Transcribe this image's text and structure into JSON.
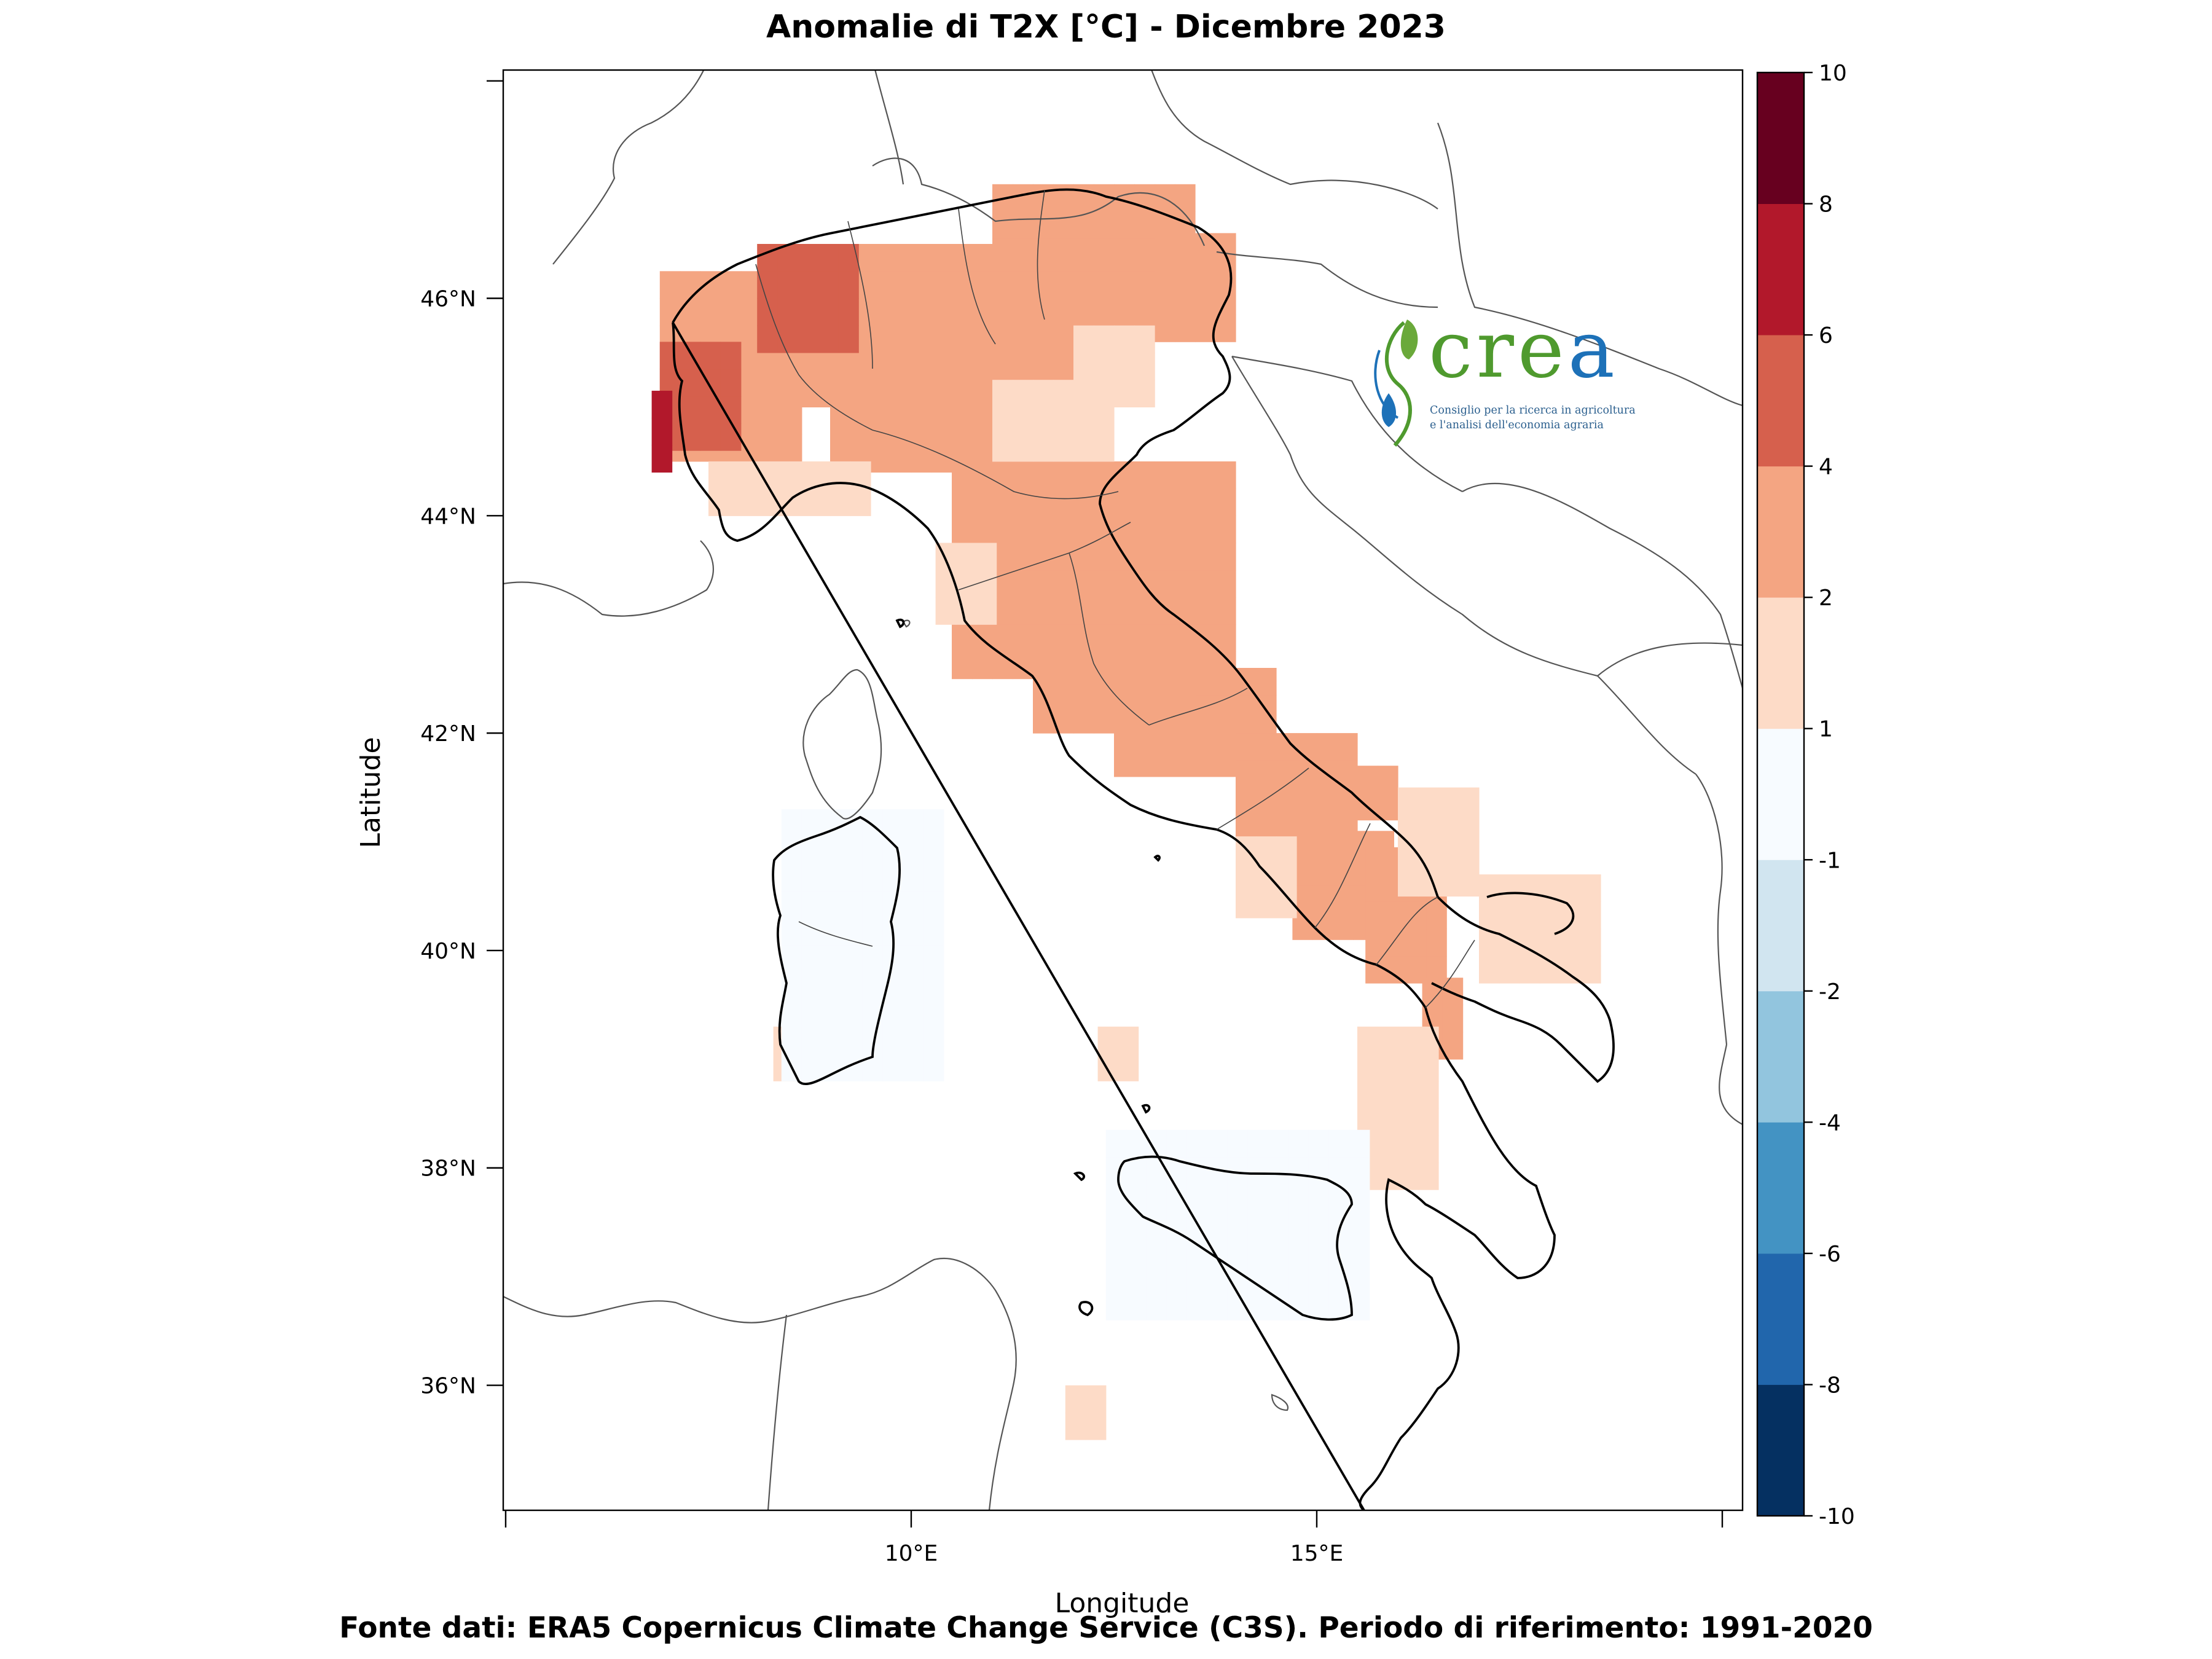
{
  "title": "Anomalie di T2X  [°C] - Dicembre 2023",
  "footer": "Fonte dati: ERA5 Copernicus Climate Change Service (C3S). Periodo di riferimento: 1991-2020",
  "axes": {
    "xlabel": "Longitude",
    "ylabel": "Latitude",
    "x_ticks": [
      {
        "value": 10,
        "label": "10°E"
      },
      {
        "value": 15,
        "label": "15°E"
      }
    ],
    "y_ticks": [
      {
        "value": 36,
        "label": "36°N"
      },
      {
        "value": 38,
        "label": "38°N"
      },
      {
        "value": 40,
        "label": "40°N"
      },
      {
        "value": 42,
        "label": "42°N"
      },
      {
        "value": 44,
        "label": "44°N"
      },
      {
        "value": 46,
        "label": "46°N"
      }
    ],
    "lon_range": [
      4.97,
      20.25
    ],
    "lat_range": [
      34.85,
      48.1
    ]
  },
  "colorbar": {
    "levels": [
      -10,
      -8,
      -6,
      -4,
      -2,
      -1,
      1,
      2,
      4,
      6,
      8,
      10
    ],
    "colors": [
      "#053061",
      "#2166ac",
      "#4393c3",
      "#92c5de",
      "#d1e5f0",
      "#f7fbff",
      "#fddbc7",
      "#f4a582",
      "#d6604d",
      "#b2182b",
      "#67001f"
    ]
  },
  "chart_data": {
    "type": "heatmap",
    "variable": "T2X",
    "grid_step_deg": 0.25,
    "regions": [
      {
        "lon": [
          8.5,
          13.0
        ],
        "lat": [
          45.0,
          46.5
        ],
        "value": 3.0
      },
      {
        "lon": [
          6.9,
          8.5
        ],
        "lat": [
          44.5,
          46.1
        ],
        "value": 3.0
      },
      {
        "lon": [
          9.0,
          11.0
        ],
        "lat": [
          44.4,
          45.1
        ],
        "value": 3.0
      },
      {
        "lon": [
          10.5,
          14.0
        ],
        "lat": [
          42.5,
          44.3
        ],
        "value": 3.0
      },
      {
        "lon": [
          12.5,
          14.3
        ],
        "lat": [
          41.6,
          42.6
        ],
        "value": 3.0
      },
      {
        "lon": [
          11.5,
          13.5
        ],
        "lat": [
          42.0,
          42.6
        ],
        "value": 3.0
      },
      {
        "lon": [
          14.0,
          15.5
        ],
        "lat": [
          41.0,
          42.0
        ],
        "value": 3.0
      },
      {
        "lon": [
          14.7,
          15.9
        ],
        "lat": [
          40.1,
          41.0
        ],
        "value": 3.0
      },
      {
        "lon": [
          15.6,
          16.5
        ],
        "lat": [
          39.7,
          40.8
        ],
        "value": 3.0
      },
      {
        "lon": [
          16.3,
          16.8
        ],
        "lat": [
          39.0,
          39.6
        ],
        "value": 3.0
      },
      {
        "lon": [
          11.0,
          13.5
        ],
        "lat": [
          46.3,
          47.0
        ],
        "value": 3.0
      },
      {
        "lon": [
          13.0,
          14.0
        ],
        "lat": [
          45.6,
          46.5
        ],
        "value": 3.0
      },
      {
        "lon": [
          15.0,
          16.0
        ],
        "lat": [
          41.2,
          41.6
        ],
        "value": 3.0
      },
      {
        "lon": [
          12.0,
          13.0
        ],
        "lat": [
          45.0,
          45.7
        ],
        "value": 1.5
      },
      {
        "lon": [
          11.0,
          12.5
        ],
        "lat": [
          44.5,
          45.1
        ],
        "value": 1.5
      },
      {
        "lon": [
          16.0,
          17.0
        ],
        "lat": [
          40.5,
          41.3
        ],
        "value": 1.5
      },
      {
        "lon": [
          17.0,
          18.5
        ],
        "lat": [
          39.7,
          40.7
        ],
        "value": 1.5
      },
      {
        "lon": [
          15.5,
          16.5
        ],
        "lat": [
          37.8,
          39.2
        ],
        "value": 1.5
      },
      {
        "lon": [
          13.4,
          15.0
        ],
        "lat": [
          36.7,
          37.9
        ],
        "value": 1.5
      },
      {
        "lon": [
          10.3,
          11.0
        ],
        "lat": [
          43.0,
          43.6
        ],
        "value": 1.5
      },
      {
        "lon": [
          7.5,
          9.5
        ],
        "lat": [
          44.0,
          44.5
        ],
        "value": 1.5
      },
      {
        "lon": [
          14.0,
          14.7
        ],
        "lat": [
          40.3,
          41.0
        ],
        "value": 1.5
      },
      {
        "lon": [
          9.2,
          9.8
        ],
        "lat": [
          39.2,
          41.0
        ],
        "value": 1.5
      },
      {
        "lon": [
          8.3,
          8.6
        ],
        "lat": [
          38.8,
          39.1
        ],
        "value": 1.5
      },
      {
        "lon": [
          11.9,
          12.4
        ],
        "lat": [
          35.5,
          35.8
        ],
        "value": 1.5
      },
      {
        "lon": [
          12.3,
          12.7
        ],
        "lat": [
          38.8,
          39.1
        ],
        "value": 1.5
      },
      {
        "lon": [
          8.1,
          9.3
        ],
        "lat": [
          45.5,
          46.3
        ],
        "value": 5.0
      },
      {
        "lon": [
          6.9,
          7.7
        ],
        "lat": [
          44.6,
          45.5
        ],
        "value": 5.0
      },
      {
        "lon": [
          6.8,
          7.0
        ],
        "lat": [
          44.4,
          45.0
        ],
        "value": 7.0
      },
      {
        "lon": [
          8.4,
          10.4
        ],
        "lat": [
          38.8,
          41.3
        ],
        "value": 0.0
      },
      {
        "lon": [
          12.4,
          15.5
        ],
        "lat": [
          36.6,
          38.3
        ],
        "value": 0.0
      }
    ]
  }
}
